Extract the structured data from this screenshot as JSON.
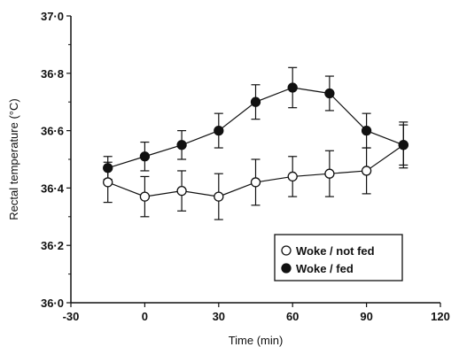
{
  "chart_data": {
    "type": "line",
    "xlabel": "Time (min)",
    "ylabel": "Rectal temperature (°C)",
    "xlim": [
      -30,
      120
    ],
    "ylim": [
      36.0,
      37.0
    ],
    "xticks": [
      -30,
      0,
      30,
      60,
      90,
      120
    ],
    "xtick_labels": [
      "-30",
      "0",
      "30",
      "60",
      "90",
      "120"
    ],
    "yticks": [
      36.0,
      36.2,
      36.4,
      36.6,
      36.8,
      37.0
    ],
    "ytick_labels": [
      "36·0",
      "36·2",
      "36·4",
      "36·6",
      "36·8",
      "37·0"
    ],
    "legend_position": "bottom-right",
    "series": [
      {
        "name": "Woke / not fed",
        "marker": "open-circle",
        "x": [
          -15,
          0,
          15,
          30,
          45,
          60,
          75,
          90,
          105
        ],
        "y": [
          36.42,
          36.37,
          36.39,
          36.37,
          36.42,
          36.44,
          36.45,
          36.46,
          36.55
        ],
        "err": [
          0.07,
          0.07,
          0.07,
          0.08,
          0.08,
          0.07,
          0.08,
          0.08,
          0.08
        ]
      },
      {
        "name": "Woke / fed",
        "marker": "filled-circle",
        "x": [
          -15,
          0,
          15,
          30,
          45,
          60,
          75,
          90,
          105
        ],
        "y": [
          36.47,
          36.51,
          36.55,
          36.6,
          36.7,
          36.75,
          36.73,
          36.6,
          36.55
        ],
        "err": [
          0.04,
          0.05,
          0.05,
          0.06,
          0.06,
          0.07,
          0.06,
          0.06,
          0.07
        ]
      }
    ]
  }
}
